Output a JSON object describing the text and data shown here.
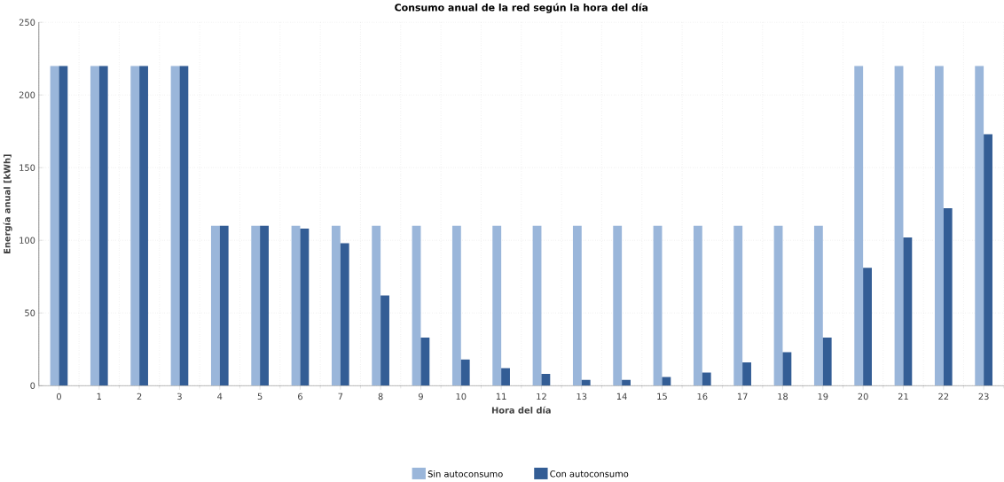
{
  "chart_data": {
    "type": "bar",
    "title": "Consumo anual de la red según la hora del día",
    "xlabel": "Hora del día",
    "ylabel": "Energía anual [kWh]",
    "categories": [
      "0",
      "1",
      "2",
      "3",
      "4",
      "5",
      "6",
      "7",
      "8",
      "9",
      "10",
      "11",
      "12",
      "13",
      "14",
      "15",
      "16",
      "17",
      "18",
      "19",
      "20",
      "21",
      "22",
      "23"
    ],
    "series": [
      {
        "name": "Sin autoconsumo",
        "color": "#9ab6da",
        "values": [
          220,
          220,
          220,
          220,
          110,
          110,
          110,
          110,
          110,
          110,
          110,
          110,
          110,
          110,
          110,
          110,
          110,
          110,
          110,
          110,
          220,
          220,
          220,
          220
        ]
      },
      {
        "name": "Con autoconsumo",
        "color": "#335d95",
        "values": [
          220,
          220,
          220,
          220,
          110,
          110,
          108,
          98,
          62,
          33,
          18,
          12,
          8,
          4,
          4,
          6,
          9,
          16,
          23,
          33,
          81,
          102,
          122,
          173
        ]
      }
    ],
    "ylim": [
      0,
      250
    ],
    "yticks": [
      0,
      50,
      100,
      150,
      200,
      250
    ],
    "grid": true,
    "legend": "bottom"
  }
}
